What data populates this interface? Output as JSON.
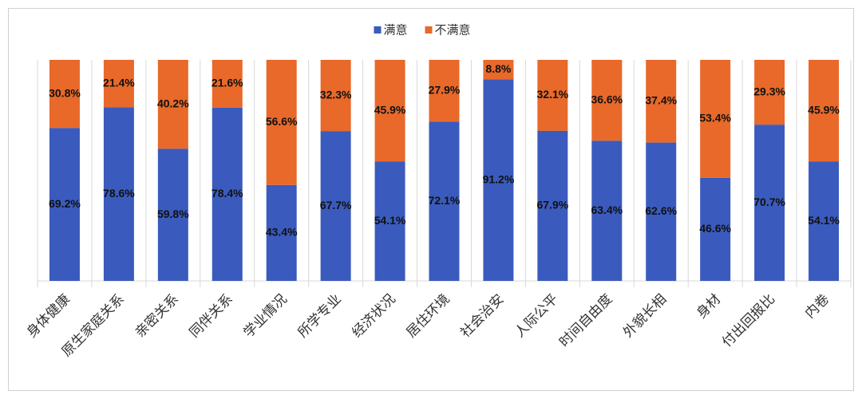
{
  "chart_data": {
    "type": "stacked_bar",
    "categories": [
      "身体健康",
      "原生家庭关系",
      "亲密关系",
      "同伴关系",
      "学业情况",
      "所学专业",
      "经济状况",
      "居住环境",
      "社会治安",
      "人际公平",
      "时间自由度",
      "外貌长相",
      "身材",
      "付出回报比",
      "内卷"
    ],
    "series": [
      {
        "name": "满意",
        "color": "#3a5bbd",
        "values": [
          69.2,
          78.6,
          59.8,
          78.4,
          43.4,
          67.7,
          54.1,
          72.1,
          91.2,
          67.9,
          63.4,
          62.6,
          46.6,
          70.7,
          54.1
        ],
        "value_labels": [
          "69.2%",
          "78.6%",
          "59.8%",
          "78.4%",
          "43.4%",
          "67.7%",
          "54.1%",
          "72.1%",
          "91.2%",
          "67.9%",
          "63.4%",
          "62.6%",
          "46.6%",
          "70.7%",
          "54.1%"
        ]
      },
      {
        "name": "不满意",
        "color": "#e8692a",
        "values": [
          30.8,
          21.4,
          40.2,
          21.6,
          56.6,
          32.3,
          45.9,
          27.9,
          8.8,
          32.1,
          36.6,
          37.4,
          53.4,
          29.3,
          45.9
        ],
        "value_labels": [
          "30.8%",
          "21.4%",
          "40.2%",
          "21.6%",
          "56.6%",
          "32.3%",
          "45.9%",
          "27.9%",
          "8.8%",
          "32.1%",
          "36.6%",
          "37.4%",
          "53.4%",
          "29.3%",
          "45.9%"
        ]
      }
    ],
    "legend": "top"
  }
}
